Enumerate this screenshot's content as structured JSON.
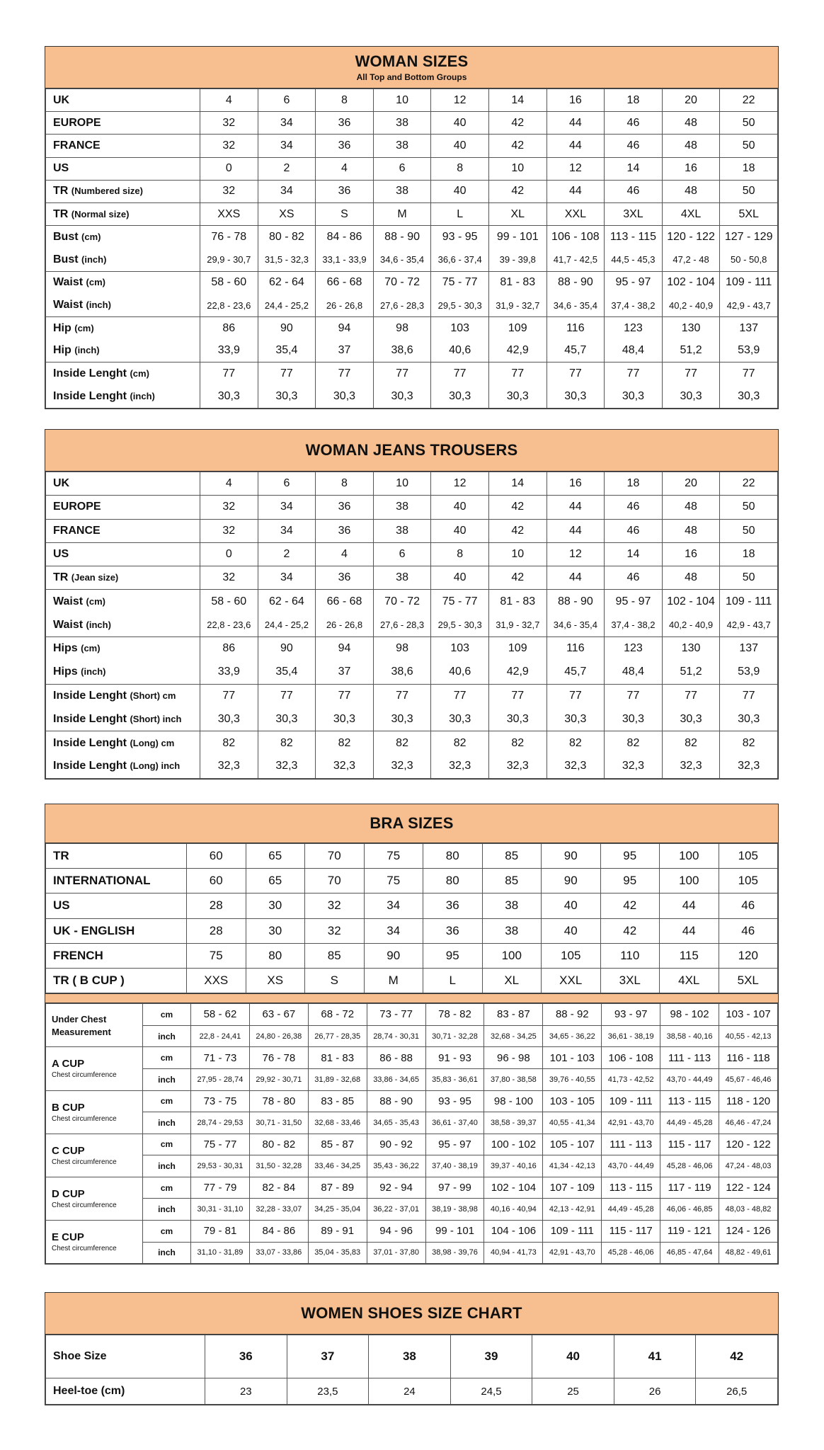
{
  "woman_sizes": {
    "title": "WOMAN SIZES",
    "subtitle": "All Top and Bottom Groups",
    "rows": [
      {
        "label": "UK",
        "values": [
          "4",
          "6",
          "8",
          "10",
          "12",
          "14",
          "16",
          "18",
          "20",
          "22"
        ]
      },
      {
        "label": "EUROPE",
        "values": [
          "32",
          "34",
          "36",
          "38",
          "40",
          "42",
          "44",
          "46",
          "48",
          "50"
        ]
      },
      {
        "label": "FRANCE",
        "values": [
          "32",
          "34",
          "36",
          "38",
          "40",
          "42",
          "44",
          "46",
          "48",
          "50"
        ]
      },
      {
        "label": "US",
        "values": [
          "0",
          "2",
          "4",
          "6",
          "8",
          "10",
          "12",
          "14",
          "16",
          "18"
        ]
      },
      {
        "label": "TR",
        "unit": "(Numbered size)",
        "values": [
          "32",
          "34",
          "36",
          "38",
          "40",
          "42",
          "44",
          "46",
          "48",
          "50"
        ]
      },
      {
        "label": "TR",
        "unit": "(Normal size)",
        "values": [
          "XXS",
          "XS",
          "S",
          "M",
          "L",
          "XL",
          "XXL",
          "3XL",
          "4XL",
          "5XL"
        ]
      },
      {
        "label": "Bust",
        "unit": "(cm)",
        "group": "start",
        "values": [
          "76 - 78",
          "80 - 82",
          "84 - 86",
          "88 - 90",
          "93 - 95",
          "99 - 101",
          "106 - 108",
          "113 - 115",
          "120 - 122",
          "127 - 129"
        ]
      },
      {
        "label": "Bust",
        "unit": "(inch)",
        "group": "end",
        "small": true,
        "values": [
          "29,9 - 30,7",
          "31,5 - 32,3",
          "33,1 - 33,9",
          "34,6 - 35,4",
          "36,6 - 37,4",
          "39 - 39,8",
          "41,7 - 42,5",
          "44,5 - 45,3",
          "47,2 - 48",
          "50 - 50,8"
        ]
      },
      {
        "label": "Waist",
        "unit": "(cm)",
        "group": "start",
        "values": [
          "58 - 60",
          "62 - 64",
          "66 - 68",
          "70 - 72",
          "75 - 77",
          "81 - 83",
          "88 - 90",
          "95 - 97",
          "102 - 104",
          "109 - 111"
        ]
      },
      {
        "label": "Waist",
        "unit": "(inch)",
        "group": "end",
        "small": true,
        "values": [
          "22,8 - 23,6",
          "24,4 - 25,2",
          "26 - 26,8",
          "27,6 - 28,3",
          "29,5 - 30,3",
          "31,9 - 32,7",
          "34,6 - 35,4",
          "37,4 - 38,2",
          "40,2 - 40,9",
          "42,9 - 43,7"
        ]
      },
      {
        "label": "Hip",
        "unit": "(cm)",
        "group": "start",
        "values": [
          "86",
          "90",
          "94",
          "98",
          "103",
          "109",
          "116",
          "123",
          "130",
          "137"
        ]
      },
      {
        "label": "Hip",
        "unit": "(inch)",
        "group": "end",
        "values": [
          "33,9",
          "35,4",
          "37",
          "38,6",
          "40,6",
          "42,9",
          "45,7",
          "48,4",
          "51,2",
          "53,9"
        ]
      },
      {
        "label": "Inside Lenght",
        "unit": "(cm)",
        "group": "start",
        "values": [
          "77",
          "77",
          "77",
          "77",
          "77",
          "77",
          "77",
          "77",
          "77",
          "77"
        ]
      },
      {
        "label": "Inside Lenght",
        "unit": "(inch)",
        "group": "end",
        "values": [
          "30,3",
          "30,3",
          "30,3",
          "30,3",
          "30,3",
          "30,3",
          "30,3",
          "30,3",
          "30,3",
          "30,3"
        ]
      }
    ]
  },
  "jeans": {
    "title": "WOMAN JEANS TROUSERS",
    "rows": [
      {
        "label": "UK",
        "values": [
          "4",
          "6",
          "8",
          "10",
          "12",
          "14",
          "16",
          "18",
          "20",
          "22"
        ]
      },
      {
        "label": "EUROPE",
        "values": [
          "32",
          "34",
          "36",
          "38",
          "40",
          "42",
          "44",
          "46",
          "48",
          "50"
        ]
      },
      {
        "label": "FRANCE",
        "values": [
          "32",
          "34",
          "36",
          "38",
          "40",
          "42",
          "44",
          "46",
          "48",
          "50"
        ]
      },
      {
        "label": "US",
        "values": [
          "0",
          "2",
          "4",
          "6",
          "8",
          "10",
          "12",
          "14",
          "16",
          "18"
        ]
      },
      {
        "label": "TR",
        "unit": "(Jean size)",
        "values": [
          "32",
          "34",
          "36",
          "38",
          "40",
          "42",
          "44",
          "46",
          "48",
          "50"
        ]
      },
      {
        "label": "Waist",
        "unit": "(cm)",
        "group": "start",
        "values": [
          "58 - 60",
          "62 - 64",
          "66 - 68",
          "70 - 72",
          "75 - 77",
          "81 - 83",
          "88 - 90",
          "95 - 97",
          "102 - 104",
          "109 - 111"
        ]
      },
      {
        "label": "Waist",
        "unit": "(inch)",
        "group": "end",
        "small": true,
        "values": [
          "22,8 - 23,6",
          "24,4 - 25,2",
          "26 - 26,8",
          "27,6 - 28,3",
          "29,5 - 30,3",
          "31,9 - 32,7",
          "34,6 - 35,4",
          "37,4 - 38,2",
          "40,2 - 40,9",
          "42,9 - 43,7"
        ]
      },
      {
        "label": "Hips",
        "unit": "(cm)",
        "group": "start",
        "values": [
          "86",
          "90",
          "94",
          "98",
          "103",
          "109",
          "116",
          "123",
          "130",
          "137"
        ]
      },
      {
        "label": "Hips",
        "unit": "(inch)",
        "group": "end",
        "values": [
          "33,9",
          "35,4",
          "37",
          "38,6",
          "40,6",
          "42,9",
          "45,7",
          "48,4",
          "51,2",
          "53,9"
        ]
      },
      {
        "label": "Inside Lenght",
        "unit": "(Short) cm",
        "group": "start",
        "values": [
          "77",
          "77",
          "77",
          "77",
          "77",
          "77",
          "77",
          "77",
          "77",
          "77"
        ]
      },
      {
        "label": "Inside Lenght",
        "unit": "(Short) inch",
        "group": "end",
        "values": [
          "30,3",
          "30,3",
          "30,3",
          "30,3",
          "30,3",
          "30,3",
          "30,3",
          "30,3",
          "30,3",
          "30,3"
        ]
      },
      {
        "label": "Inside Lenght",
        "unit": "(Long) cm",
        "group": "start",
        "values": [
          "82",
          "82",
          "82",
          "82",
          "82",
          "82",
          "82",
          "82",
          "82",
          "82"
        ]
      },
      {
        "label": "Inside Lenght",
        "unit": "(Long) inch",
        "group": "end",
        "values": [
          "32,3",
          "32,3",
          "32,3",
          "32,3",
          "32,3",
          "32,3",
          "32,3",
          "32,3",
          "32,3",
          "32,3"
        ]
      }
    ]
  },
  "bra": {
    "title": "BRA SIZES",
    "rows": [
      {
        "label": "TR",
        "values": [
          "60",
          "65",
          "70",
          "75",
          "80",
          "85",
          "90",
          "95",
          "100",
          "105"
        ]
      },
      {
        "label": "INTERNATIONAL",
        "values": [
          "60",
          "65",
          "70",
          "75",
          "80",
          "85",
          "90",
          "95",
          "100",
          "105"
        ]
      },
      {
        "label": "US",
        "values": [
          "28",
          "30",
          "32",
          "34",
          "36",
          "38",
          "40",
          "42",
          "44",
          "46"
        ]
      },
      {
        "label": "UK - ENGLISH",
        "values": [
          "28",
          "30",
          "32",
          "34",
          "36",
          "38",
          "40",
          "42",
          "44",
          "46"
        ]
      },
      {
        "label": "FRENCH",
        "values": [
          "75",
          "80",
          "85",
          "90",
          "95",
          "100",
          "105",
          "110",
          "115",
          "120"
        ]
      },
      {
        "label": "TR ( B CUP )",
        "values": [
          "XXS",
          "XS",
          "S",
          "M",
          "L",
          "XL",
          "XXL",
          "3XL",
          "4XL",
          "5XL"
        ]
      }
    ],
    "unit_cm": "cm",
    "unit_inch": "inch",
    "cups": [
      {
        "label": "Under Chest",
        "sublabel": "Measurement",
        "bold_sub": true,
        "cm": [
          "58 - 62",
          "63 - 67",
          "68 - 72",
          "73 - 77",
          "78 - 82",
          "83 - 87",
          "88 - 92",
          "93 - 97",
          "98 - 102",
          "103 - 107"
        ],
        "inch": [
          "22,8 - 24,41",
          "24,80 - 26,38",
          "26,77 - 28,35",
          "28,74 - 30,31",
          "30,71 - 32,28",
          "32,68 - 34,25",
          "34,65 - 36,22",
          "36,61 - 38,19",
          "38,58 - 40,16",
          "40,55 - 42,13"
        ]
      },
      {
        "label": "A CUP",
        "sublabel": "Chest circumference",
        "cm": [
          "71 - 73",
          "76 - 78",
          "81 - 83",
          "86 - 88",
          "91 - 93",
          "96 - 98",
          "101 - 103",
          "106 - 108",
          "111 - 113",
          "116 - 118"
        ],
        "inch": [
          "27,95 - 28,74",
          "29,92 - 30,71",
          "31,89 - 32,68",
          "33,86 - 34,65",
          "35,83 - 36,61",
          "37,80 - 38,58",
          "39,76 - 40,55",
          "41,73 - 42,52",
          "43,70 - 44,49",
          "45,67 - 46,46"
        ]
      },
      {
        "label": "B CUP",
        "sublabel": "Chest circumference",
        "cm": [
          "73 - 75",
          "78 - 80",
          "83 - 85",
          "88 - 90",
          "93 - 95",
          "98 - 100",
          "103 - 105",
          "109 - 111",
          "113 - 115",
          "118 - 120"
        ],
        "inch": [
          "28,74 - 29,53",
          "30,71 - 31,50",
          "32,68 - 33,46",
          "34,65 - 35,43",
          "36,61 - 37,40",
          "38,58 - 39,37",
          "40,55 - 41,34",
          "42,91 - 43,70",
          "44,49 - 45,28",
          "46,46 - 47,24"
        ]
      },
      {
        "label": "C CUP",
        "sublabel": "Chest circumference",
        "cm": [
          "75 - 77",
          "80 - 82",
          "85 - 87",
          "90 - 92",
          "95 - 97",
          "100 - 102",
          "105 - 107",
          "111 - 113",
          "115 - 117",
          "120 - 122"
        ],
        "inch": [
          "29,53 - 30,31",
          "31,50 - 32,28",
          "33,46 - 34,25",
          "35,43 - 36,22",
          "37,40 - 38,19",
          "39,37 - 40,16",
          "41,34 - 42,13",
          "43,70 - 44,49",
          "45,28 - 46,06",
          "47,24 - 48,03"
        ]
      },
      {
        "label": "D CUP",
        "sublabel": "Chest circumference",
        "cm": [
          "77 - 79",
          "82 - 84",
          "87 - 89",
          "92 - 94",
          "97 - 99",
          "102 - 104",
          "107 - 109",
          "113 - 115",
          "117 - 119",
          "122 - 124"
        ],
        "inch": [
          "30,31 - 31,10",
          "32,28 - 33,07",
          "34,25 - 35,04",
          "36,22 - 37,01",
          "38,19 - 38,98",
          "40,16 - 40,94",
          "42,13 - 42,91",
          "44,49 - 45,28",
          "46,06 - 46,85",
          "48,03 - 48,82"
        ]
      },
      {
        "label": "E CUP",
        "sublabel": "Chest circumference",
        "cm": [
          "79 - 81",
          "84 - 86",
          "89 - 91",
          "94 - 96",
          "99 - 101",
          "104 - 106",
          "109 - 111",
          "115 - 117",
          "119 - 121",
          "124 - 126"
        ],
        "inch": [
          "31,10 - 31,89",
          "33,07 - 33,86",
          "35,04 - 35,83",
          "37,01 - 37,80",
          "38,98 - 39,76",
          "40,94 - 41,73",
          "42,91 - 43,70",
          "45,28 - 46,06",
          "46,85 - 47,64",
          "48,82 - 49,61"
        ]
      }
    ]
  },
  "shoes": {
    "title": "WOMEN SHOES SIZE CHART",
    "rows": [
      {
        "label": "Shoe Size",
        "bold": true,
        "values": [
          "36",
          "37",
          "38",
          "39",
          "40",
          "41",
          "42"
        ]
      },
      {
        "label": "Heel-toe (cm)",
        "values": [
          "23",
          "23,5",
          "24",
          "24,5",
          "25",
          "26",
          "26,5"
        ]
      }
    ]
  },
  "colors": {
    "header": "#f7be90",
    "border": "#333333"
  }
}
